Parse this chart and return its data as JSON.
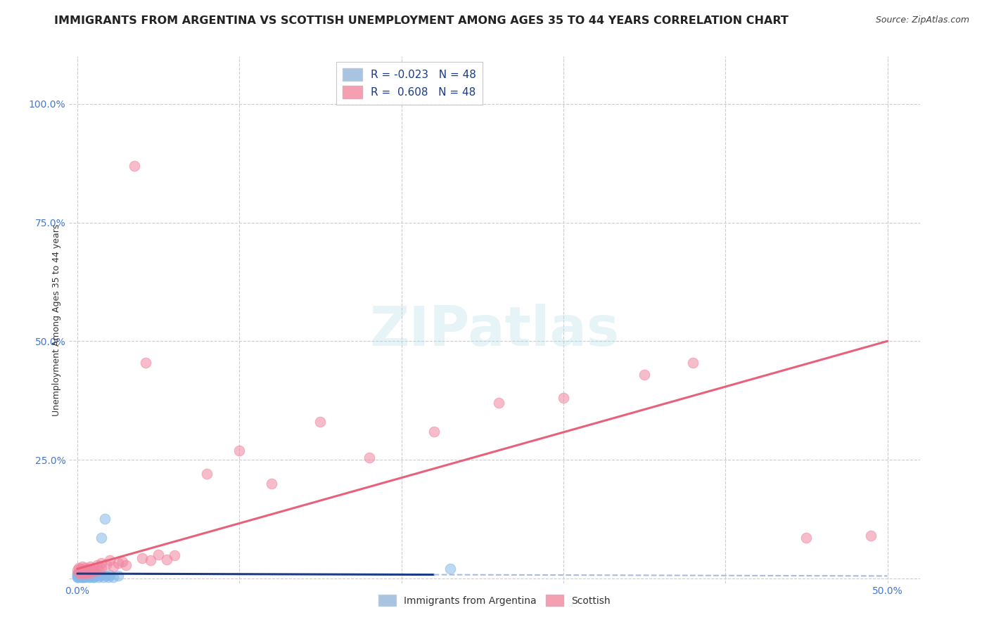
{
  "title": "IMMIGRANTS FROM ARGENTINA VS SCOTTISH UNEMPLOYMENT AMONG AGES 35 TO 44 YEARS CORRELATION CHART",
  "source": "Source: ZipAtlas.com",
  "xlabel_ticks": [
    "0.0%",
    "",
    "",
    "",
    "",
    "50.0%"
  ],
  "xtick_vals": [
    0.0,
    0.1,
    0.2,
    0.3,
    0.4,
    0.5
  ],
  "ytick_vals": [
    0.0,
    0.25,
    0.5,
    0.75,
    1.0
  ],
  "ylabel_ticks": [
    "",
    "25.0%",
    "50.0%",
    "75.0%",
    "100.0%"
  ],
  "xlim": [
    -0.005,
    0.52
  ],
  "ylim": [
    -0.01,
    1.1
  ],
  "watermark": "ZIPatlas",
  "argentina_color": "#85b8e8",
  "scottish_color": "#f285a0",
  "argentina_line_color": "#1a3a8a",
  "scottish_line_color": "#e8607a",
  "argentina_line_solid_end": 0.22,
  "argentina_line_intercept": 0.01,
  "argentina_line_slope": -0.01,
  "scottish_line_intercept": 0.02,
  "scottish_line_slope": 0.96,
  "argentina_points": [
    [
      0.0,
      0.005
    ],
    [
      0.0,
      0.008
    ],
    [
      0.0,
      0.003
    ],
    [
      0.0,
      0.01
    ],
    [
      0.001,
      0.005
    ],
    [
      0.001,
      0.008
    ],
    [
      0.001,
      0.003
    ],
    [
      0.001,
      0.012
    ],
    [
      0.002,
      0.007
    ],
    [
      0.002,
      0.003
    ],
    [
      0.002,
      0.01
    ],
    [
      0.002,
      0.005
    ],
    [
      0.003,
      0.008
    ],
    [
      0.003,
      0.005
    ],
    [
      0.003,
      0.012
    ],
    [
      0.003,
      0.003
    ],
    [
      0.004,
      0.007
    ],
    [
      0.004,
      0.01
    ],
    [
      0.004,
      0.003
    ],
    [
      0.005,
      0.008
    ],
    [
      0.005,
      0.005
    ],
    [
      0.005,
      0.003
    ],
    [
      0.006,
      0.01
    ],
    [
      0.006,
      0.005
    ],
    [
      0.007,
      0.008
    ],
    [
      0.007,
      0.003
    ],
    [
      0.008,
      0.01
    ],
    [
      0.008,
      0.005
    ],
    [
      0.009,
      0.007
    ],
    [
      0.01,
      0.003
    ],
    [
      0.011,
      0.005
    ],
    [
      0.012,
      0.008
    ],
    [
      0.013,
      0.003
    ],
    [
      0.014,
      0.005
    ],
    [
      0.015,
      0.008
    ],
    [
      0.016,
      0.003
    ],
    [
      0.017,
      0.125
    ],
    [
      0.018,
      0.005
    ],
    [
      0.019,
      0.003
    ],
    [
      0.02,
      0.007
    ],
    [
      0.022,
      0.003
    ],
    [
      0.025,
      0.005
    ],
    [
      0.015,
      0.085
    ],
    [
      0.008,
      0.002
    ],
    [
      0.01,
      0.002
    ],
    [
      0.23,
      0.02
    ],
    [
      0.0,
      0.002
    ],
    [
      0.003,
      0.002
    ]
  ],
  "scottish_points": [
    [
      0.0,
      0.018
    ],
    [
      0.001,
      0.012
    ],
    [
      0.001,
      0.022
    ],
    [
      0.002,
      0.01
    ],
    [
      0.002,
      0.02
    ],
    [
      0.003,
      0.015
    ],
    [
      0.003,
      0.025
    ],
    [
      0.004,
      0.018
    ],
    [
      0.004,
      0.012
    ],
    [
      0.005,
      0.022
    ],
    [
      0.005,
      0.01
    ],
    [
      0.006,
      0.018
    ],
    [
      0.006,
      0.015
    ],
    [
      0.007,
      0.02
    ],
    [
      0.008,
      0.012
    ],
    [
      0.008,
      0.025
    ],
    [
      0.009,
      0.018
    ],
    [
      0.01,
      0.022
    ],
    [
      0.01,
      0.015
    ],
    [
      0.012,
      0.028
    ],
    [
      0.013,
      0.018
    ],
    [
      0.015,
      0.032
    ],
    [
      0.015,
      0.022
    ],
    [
      0.018,
      0.03
    ],
    [
      0.02,
      0.038
    ],
    [
      0.022,
      0.025
    ],
    [
      0.025,
      0.032
    ],
    [
      0.028,
      0.035
    ],
    [
      0.03,
      0.028
    ],
    [
      0.035,
      0.87
    ],
    [
      0.04,
      0.042
    ],
    [
      0.042,
      0.455
    ],
    [
      0.045,
      0.038
    ],
    [
      0.05,
      0.05
    ],
    [
      0.055,
      0.04
    ],
    [
      0.06,
      0.048
    ],
    [
      0.08,
      0.22
    ],
    [
      0.1,
      0.27
    ],
    [
      0.12,
      0.2
    ],
    [
      0.15,
      0.33
    ],
    [
      0.18,
      0.255
    ],
    [
      0.22,
      0.31
    ],
    [
      0.26,
      0.37
    ],
    [
      0.3,
      0.38
    ],
    [
      0.35,
      0.43
    ],
    [
      0.38,
      0.455
    ],
    [
      0.45,
      0.085
    ],
    [
      0.49,
      0.09
    ]
  ],
  "grid_color": "#cccccc",
  "background_color": "#ffffff",
  "title_fontsize": 11.5,
  "source_fontsize": 9,
  "tick_color": "#4477cc",
  "tick_fontsize": 10,
  "ylabel": "Unemployment Among Ages 35 to 44 years",
  "ylabel_fontsize": 9
}
